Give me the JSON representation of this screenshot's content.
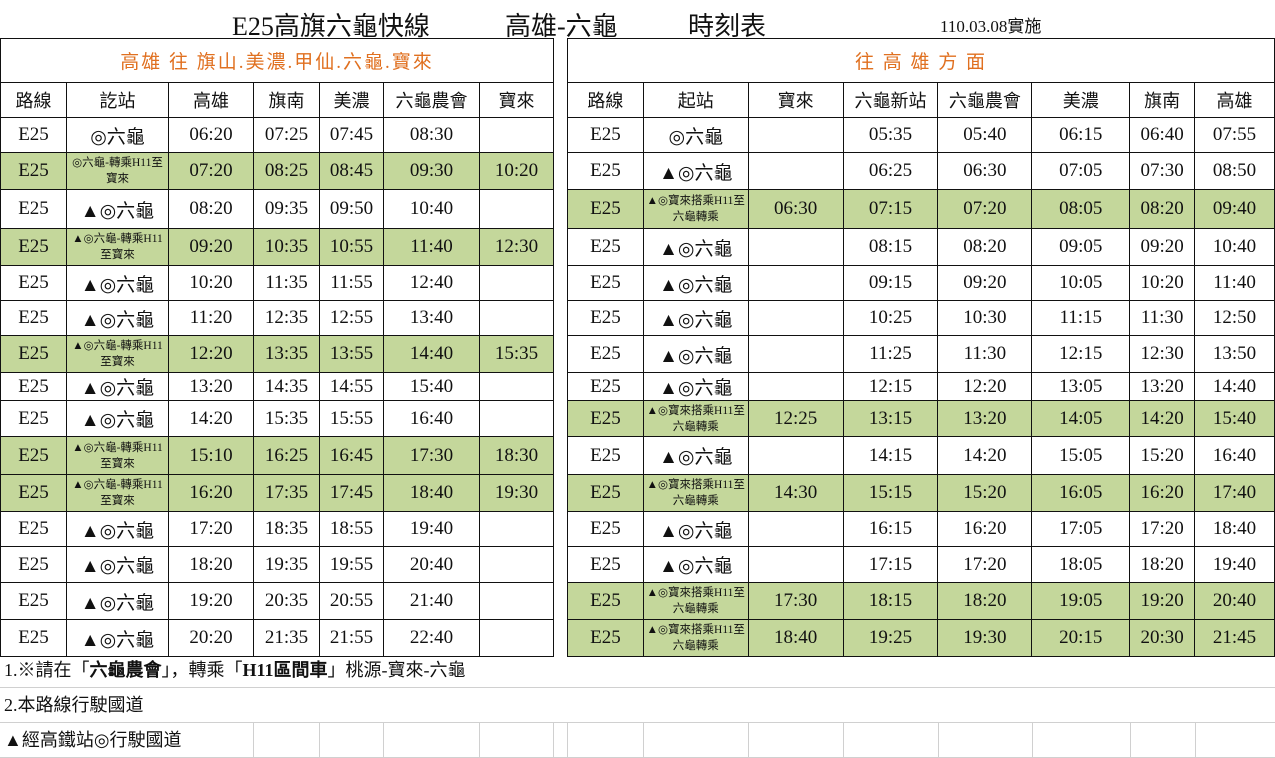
{
  "title": {
    "route_name": "E25高旗六龜快線",
    "endpoints": "高雄-六龜",
    "doc_type": "時刻表",
    "effective": "110.03.08實施"
  },
  "outbound": {
    "section_title": "高雄 往 旗山.美濃.甲仙.六龜.寶來",
    "headers": [
      "路線",
      "訖站",
      "高雄",
      "旗南",
      "美濃",
      "六龜農會",
      "寶來"
    ],
    "rows": [
      {
        "green": false,
        "cells": [
          "E25",
          "◎六龜",
          "06:20",
          "07:25",
          "07:45",
          "08:30",
          ""
        ]
      },
      {
        "green": true,
        "cells": [
          "E25",
          "◎六龜-轉乘H11至寶來",
          "07:20",
          "08:25",
          "08:45",
          "09:30",
          "10:20"
        ]
      },
      {
        "green": false,
        "cells": [
          "E25",
          "▲◎六龜",
          "08:20",
          "09:35",
          "09:50",
          "10:40",
          ""
        ]
      },
      {
        "green": true,
        "cells": [
          "E25",
          "▲◎六龜-轉乘H11至寶來",
          "09:20",
          "10:35",
          "10:55",
          "11:40",
          "12:30"
        ]
      },
      {
        "green": false,
        "cells": [
          "E25",
          "▲◎六龜",
          "10:20",
          "11:35",
          "11:55",
          "12:40",
          ""
        ]
      },
      {
        "green": false,
        "cells": [
          "E25",
          "▲◎六龜",
          "11:20",
          "12:35",
          "12:55",
          "13:40",
          ""
        ]
      },
      {
        "green": true,
        "cells": [
          "E25",
          "▲◎六龜-轉乘H11至寶來",
          "12:20",
          "13:35",
          "13:55",
          "14:40",
          "15:35"
        ]
      },
      {
        "green": false,
        "cells": [
          "E25",
          "▲◎六龜",
          "13:20",
          "14:35",
          "14:55",
          "15:40",
          ""
        ]
      },
      {
        "green": false,
        "cells": [
          "E25",
          "▲◎六龜",
          "14:20",
          "15:35",
          "15:55",
          "16:40",
          ""
        ]
      },
      {
        "green": true,
        "cells": [
          "E25",
          "▲◎六龜-轉乘H11至寶來",
          "15:10",
          "16:25",
          "16:45",
          "17:30",
          "18:30"
        ]
      },
      {
        "green": true,
        "cells": [
          "E25",
          "▲◎六龜-轉乘H11至寶來",
          "16:20",
          "17:35",
          "17:45",
          "18:40",
          "19:30"
        ]
      },
      {
        "green": false,
        "cells": [
          "E25",
          "▲◎六龜",
          "17:20",
          "18:35",
          "18:55",
          "19:40",
          ""
        ]
      },
      {
        "green": false,
        "cells": [
          "E25",
          "▲◎六龜",
          "18:20",
          "19:35",
          "19:55",
          "20:40",
          ""
        ]
      },
      {
        "green": false,
        "cells": [
          "E25",
          "▲◎六龜",
          "19:20",
          "20:35",
          "20:55",
          "21:40",
          ""
        ]
      },
      {
        "green": false,
        "cells": [
          "E25",
          "▲◎六龜",
          "20:20",
          "21:35",
          "21:55",
          "22:40",
          ""
        ]
      }
    ]
  },
  "inbound": {
    "section_title": "往 高 雄 方 面",
    "headers": [
      "路線",
      "起站",
      "寶來",
      "六龜新站",
      "六龜農會",
      "美濃",
      "旗南",
      "高雄"
    ],
    "rows": [
      {
        "green": false,
        "cells": [
          "E25",
          "◎六龜",
          "",
          "05:35",
          "05:40",
          "06:15",
          "06:40",
          "07:55"
        ]
      },
      {
        "green": false,
        "cells": [
          "E25",
          "▲◎六龜",
          "",
          "06:25",
          "06:30",
          "07:05",
          "07:30",
          "08:50"
        ]
      },
      {
        "green": true,
        "cells": [
          "E25",
          "▲◎寶來搭乘H11至六龜轉乘",
          "06:30",
          "07:15",
          "07:20",
          "08:05",
          "08:20",
          "09:40"
        ]
      },
      {
        "green": false,
        "cells": [
          "E25",
          "▲◎六龜",
          "",
          "08:15",
          "08:20",
          "09:05",
          "09:20",
          "10:40"
        ]
      },
      {
        "green": false,
        "cells": [
          "E25",
          "▲◎六龜",
          "",
          "09:15",
          "09:20",
          "10:05",
          "10:20",
          "11:40"
        ]
      },
      {
        "green": false,
        "cells": [
          "E25",
          "▲◎六龜",
          "",
          "10:25",
          "10:30",
          "11:15",
          "11:30",
          "12:50"
        ]
      },
      {
        "green": false,
        "cells": [
          "E25",
          "▲◎六龜",
          "",
          "11:25",
          "11:30",
          "12:15",
          "12:30",
          "13:50"
        ]
      },
      {
        "green": false,
        "cells": [
          "E25",
          "▲◎六龜",
          "",
          "12:15",
          "12:20",
          "13:05",
          "13:20",
          "14:40"
        ]
      },
      {
        "green": true,
        "cells": [
          "E25",
          "▲◎寶來搭乘H11至六龜轉乘",
          "12:25",
          "13:15",
          "13:20",
          "14:05",
          "14:20",
          "15:40"
        ]
      },
      {
        "green": false,
        "cells": [
          "E25",
          "▲◎六龜",
          "",
          "14:15",
          "14:20",
          "15:05",
          "15:20",
          "16:40"
        ]
      },
      {
        "green": true,
        "cells": [
          "E25",
          "▲◎寶來搭乘H11至六龜轉乘",
          "14:30",
          "15:15",
          "15:20",
          "16:05",
          "16:20",
          "17:40"
        ]
      },
      {
        "green": false,
        "cells": [
          "E25",
          "▲◎六龜",
          "",
          "16:15",
          "16:20",
          "17:05",
          "17:20",
          "18:40"
        ]
      },
      {
        "green": false,
        "cells": [
          "E25",
          "▲◎六龜",
          "",
          "17:15",
          "17:20",
          "18:05",
          "18:20",
          "19:40"
        ]
      },
      {
        "green": true,
        "cells": [
          "E25",
          "▲◎寶來搭乘H11至六龜轉乘",
          "17:30",
          "18:15",
          "18:20",
          "19:05",
          "19:20",
          "20:40"
        ]
      },
      {
        "green": true,
        "cells": [
          "E25",
          "▲◎寶來搭乘H11至六龜轉乘",
          "18:40",
          "19:25",
          "19:30",
          "20:15",
          "20:30",
          "21:45"
        ]
      }
    ]
  },
  "notes": {
    "note1_prefix": "1.※請在「",
    "note1_bold1": "六龜農會",
    "note1_mid": "」，轉乘「",
    "note1_bold2": "H11區間車",
    "note1_suffix": "」桃源-寶來-六龜",
    "note2": "2.本路線行駛國道",
    "note3": "▲經高鐵站◎行駛國道"
  },
  "colors": {
    "highlight_row": "#c4d79b",
    "section_title": "#e07020"
  }
}
